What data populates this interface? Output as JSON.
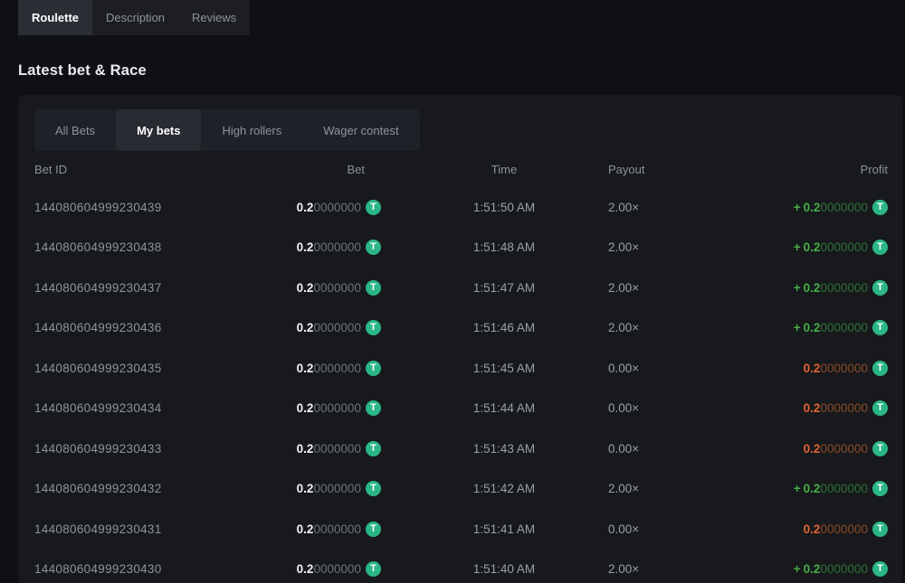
{
  "game_tabs": {
    "items": [
      {
        "label": "Roulette",
        "active": true
      },
      {
        "label": "Description",
        "active": false
      },
      {
        "label": "Reviews",
        "active": false
      }
    ]
  },
  "section": {
    "title": "Latest bet & Race"
  },
  "bet_tabs": {
    "items": [
      {
        "label": "All Bets",
        "active": false
      },
      {
        "label": "My bets",
        "active": true
      },
      {
        "label": "High rollers",
        "active": false
      },
      {
        "label": "Wager contest",
        "active": false
      }
    ]
  },
  "table": {
    "headers": {
      "bet_id": "Bet ID",
      "bet": "Bet",
      "time": "Time",
      "payout": "Payout",
      "profit": "Profit"
    },
    "currency_symbol": "T",
    "rows": [
      {
        "bet_id": "144080604999230439",
        "bet_main": "0.2",
        "bet_zeros": "0000000",
        "time": "1:51:50 AM",
        "payout": "2.00×",
        "profit_sign": "+",
        "profit_main": "0.2",
        "profit_zeros": "0000000",
        "result": "win"
      },
      {
        "bet_id": "144080604999230438",
        "bet_main": "0.2",
        "bet_zeros": "0000000",
        "time": "1:51:48 AM",
        "payout": "2.00×",
        "profit_sign": "+",
        "profit_main": "0.2",
        "profit_zeros": "0000000",
        "result": "win"
      },
      {
        "bet_id": "144080604999230437",
        "bet_main": "0.2",
        "bet_zeros": "0000000",
        "time": "1:51:47 AM",
        "payout": "2.00×",
        "profit_sign": "+",
        "profit_main": "0.2",
        "profit_zeros": "0000000",
        "result": "win"
      },
      {
        "bet_id": "144080604999230436",
        "bet_main": "0.2",
        "bet_zeros": "0000000",
        "time": "1:51:46 AM",
        "payout": "2.00×",
        "profit_sign": "+",
        "profit_main": "0.2",
        "profit_zeros": "0000000",
        "result": "win"
      },
      {
        "bet_id": "144080604999230435",
        "bet_main": "0.2",
        "bet_zeros": "0000000",
        "time": "1:51:45 AM",
        "payout": "0.00×",
        "profit_sign": "",
        "profit_main": "0.2",
        "profit_zeros": "0000000",
        "result": "loss"
      },
      {
        "bet_id": "144080604999230434",
        "bet_main": "0.2",
        "bet_zeros": "0000000",
        "time": "1:51:44 AM",
        "payout": "0.00×",
        "profit_sign": "",
        "profit_main": "0.2",
        "profit_zeros": "0000000",
        "result": "loss"
      },
      {
        "bet_id": "144080604999230433",
        "bet_main": "0.2",
        "bet_zeros": "0000000",
        "time": "1:51:43 AM",
        "payout": "0.00×",
        "profit_sign": "",
        "profit_main": "0.2",
        "profit_zeros": "0000000",
        "result": "loss"
      },
      {
        "bet_id": "144080604999230432",
        "bet_main": "0.2",
        "bet_zeros": "0000000",
        "time": "1:51:42 AM",
        "payout": "2.00×",
        "profit_sign": "+",
        "profit_main": "0.2",
        "profit_zeros": "0000000",
        "result": "win"
      },
      {
        "bet_id": "144080604999230431",
        "bet_main": "0.2",
        "bet_zeros": "0000000",
        "time": "1:51:41 AM",
        "payout": "0.00×",
        "profit_sign": "",
        "profit_main": "0.2",
        "profit_zeros": "0000000",
        "result": "loss"
      },
      {
        "bet_id": "144080604999230430",
        "bet_main": "0.2",
        "bet_zeros": "0000000",
        "time": "1:51:40 AM",
        "payout": "2.00×",
        "profit_sign": "+",
        "profit_main": "0.2",
        "profit_zeros": "0000000",
        "result": "win"
      }
    ]
  },
  "colors": {
    "win_bright": "#46ae46",
    "win_dim": "#2d7034",
    "loss_bright": "#e0642f",
    "loss_dim": "#8c4a26",
    "coin_bg": "#2bb687"
  }
}
